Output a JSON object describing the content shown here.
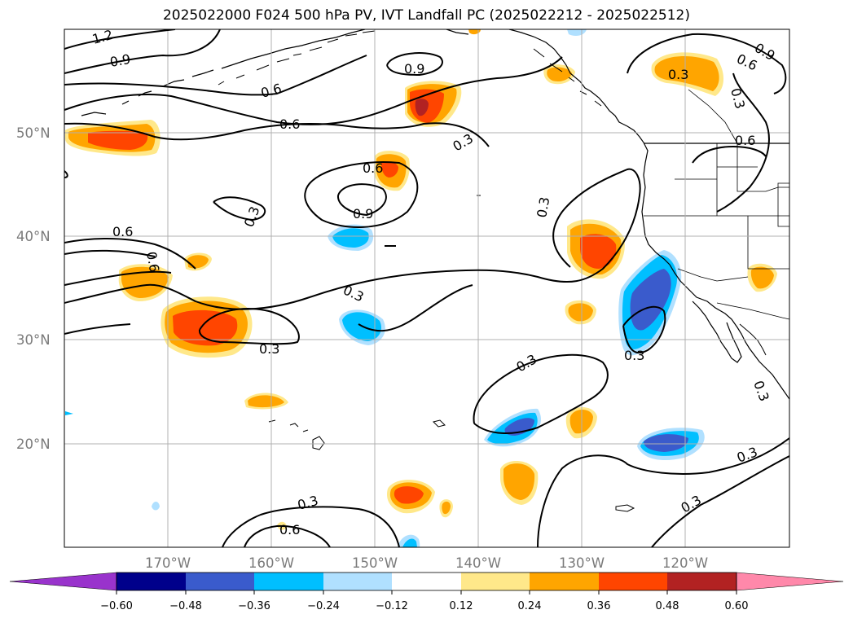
{
  "title": "2025022000 F024 500 hPa PV, IVT Landfall PC (2025022212 - 2025022512)",
  "lat_labels": [
    "50°N",
    "40°N",
    "30°N",
    "20°N"
  ],
  "lon_labels": [
    "170°W",
    "160°W",
    "150°W",
    "140°W",
    "130°W",
    "120°W"
  ],
  "contour_labels": {
    "c12": "1.2",
    "c09a": "0.9",
    "c09b": "0.9",
    "c09c": "0.9",
    "c09d": "0.9",
    "c06a": "0.6",
    "c06b": "0.6",
    "c06c": "0.6",
    "c06d": "0.6",
    "c06e": "0.6",
    "c06f": "0.6",
    "c06g": "0.6",
    "c06h": "0.6",
    "c03a": "0.3",
    "c03b": "0.3",
    "c03c": "0.3",
    "c03d": "0.3",
    "c03e": "0.3",
    "c03f": "0.3",
    "c03g": "0.3",
    "c03h": "0.3",
    "c03i": "0.3",
    "c03j": "0.3",
    "c03k": "0.3",
    "c03l": "0.3",
    "c03m": "0.3"
  },
  "colorbar": {
    "ticks": [
      "−0.60",
      "−0.48",
      "−0.36",
      "−0.24",
      "−0.12",
      "0.12",
      "0.24",
      "0.36",
      "0.48",
      "0.60"
    ],
    "colors": [
      "#9933cc",
      "#00008b",
      "#3a5bcc",
      "#00bfff",
      "#b0e0ff",
      "#ffffff",
      "#ffe88a",
      "#ffa500",
      "#ff4500",
      "#b22222",
      "#ff88aa"
    ]
  },
  "colors": {
    "pos_1": "#ffe88a",
    "pos_2": "#ffa500",
    "pos_3": "#ff4500",
    "pos_4": "#b22222",
    "neg_1": "#b0e0ff",
    "neg_2": "#00bfff",
    "neg_3": "#3a5bcc"
  }
}
